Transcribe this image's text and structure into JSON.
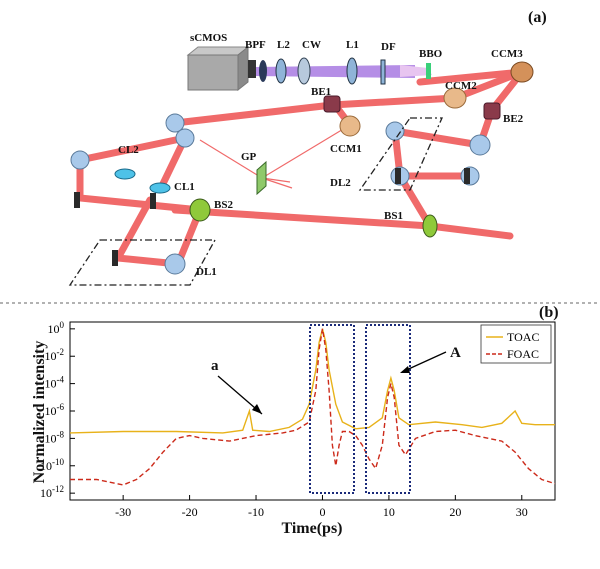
{
  "panel_a": {
    "tag": "(a)",
    "labels": {
      "scmos": "sCMOS",
      "bpf": "BPF",
      "l2": "L2",
      "cw": "CW",
      "l1": "L1",
      "df": "DF",
      "bbo": "BBO",
      "ccm3": "CCM3",
      "ccm2": "CCM2",
      "be1": "BE1",
      "be2": "BE2",
      "ccm1": "CCM1",
      "gp": "GP",
      "cl2": "CL2",
      "cl1": "CL1",
      "dl2": "DL2",
      "bs2": "BS2",
      "bs1": "BS1",
      "dl1": "DL1"
    },
    "colors": {
      "beam": "#f06a6a",
      "blue_beam": "#b58ee6",
      "mirror": "#a9c9ea",
      "splitter": "#8fc93a",
      "ccm": "#e8b98a",
      "cl": "#4ec2e8"
    }
  },
  "panel_b": {
    "tag": "(b)",
    "annotations": {
      "a": "a",
      "A": "A"
    },
    "chart_data": {
      "type": "line",
      "xlabel": "Time(ps)",
      "ylabel": "Normalized intensity",
      "xlim": [
        -38,
        35
      ],
      "ylim_log10": [
        -12.5,
        0.5
      ],
      "x_ticks": [
        "-30",
        "-20",
        "-10",
        "0",
        "10",
        "20",
        "30"
      ],
      "x_tick_values": [
        -30,
        -20,
        -10,
        0,
        10,
        20,
        30
      ],
      "y_ticks": [
        {
          "base": "10",
          "exp": "0",
          "log": 0
        },
        {
          "base": "10",
          "exp": "-2",
          "log": -2
        },
        {
          "base": "10",
          "exp": "-4",
          "log": -4
        },
        {
          "base": "10",
          "exp": "-6",
          "log": -6
        },
        {
          "base": "10",
          "exp": "-8",
          "log": -8
        },
        {
          "base": "10",
          "exp": "-10",
          "log": -10
        },
        {
          "base": "10",
          "exp": "-12",
          "log": -12
        }
      ],
      "legend_position": "top-right",
      "series": [
        {
          "name": "TOAC",
          "color": "#e8b21a",
          "dash": "solid",
          "log10_points": [
            [
              -38,
              -7.6
            ],
            [
              -30,
              -7.5
            ],
            [
              -22,
              -7.5
            ],
            [
              -15,
              -7.6
            ],
            [
              -12,
              -7.4
            ],
            [
              -11,
              -6.0
            ],
            [
              -10.5,
              -7.4
            ],
            [
              -8,
              -7.5
            ],
            [
              -5,
              -7.2
            ],
            [
              -3,
              -6.6
            ],
            [
              -2,
              -5.5
            ],
            [
              -1,
              -3
            ],
            [
              -0.5,
              -1
            ],
            [
              0,
              0
            ],
            [
              0.5,
              -1
            ],
            [
              1,
              -3
            ],
            [
              2,
              -5.5
            ],
            [
              3,
              -6.8
            ],
            [
              5,
              -7.3
            ],
            [
              7,
              -7.2
            ],
            [
              9,
              -6.5
            ],
            [
              9.8,
              -4.5
            ],
            [
              10.3,
              -3.6
            ],
            [
              10.8,
              -4.5
            ],
            [
              11.5,
              -6.5
            ],
            [
              13,
              -7.0
            ],
            [
              17,
              -6.8
            ],
            [
              21,
              -7.0
            ],
            [
              24,
              -7.2
            ],
            [
              27,
              -6.9
            ],
            [
              29,
              -6.0
            ],
            [
              30,
              -6.9
            ],
            [
              32,
              -7.0
            ],
            [
              35,
              -7.0
            ]
          ]
        },
        {
          "name": "FOAC",
          "color": "#cc2a1a",
          "dash": "dashed",
          "log10_points": [
            [
              -38,
              -11
            ],
            [
              -34,
              -11
            ],
            [
              -30,
              -11.4
            ],
            [
              -28,
              -11.0
            ],
            [
              -26,
              -10.2
            ],
            [
              -24,
              -9
            ],
            [
              -22,
              -8.0
            ],
            [
              -20,
              -7.8
            ],
            [
              -18,
              -8.0
            ],
            [
              -14,
              -8.2
            ],
            [
              -10,
              -7.8
            ],
            [
              -6,
              -7.6
            ],
            [
              -4,
              -7.4
            ],
            [
              -2,
              -6.8
            ],
            [
              -1,
              -4.5
            ],
            [
              -0.5,
              -1.5
            ],
            [
              0,
              0
            ],
            [
              0.5,
              -1.5
            ],
            [
              1,
              -4.5
            ],
            [
              1.5,
              -8.5
            ],
            [
              2,
              -10
            ],
            [
              2.5,
              -8.5
            ],
            [
              3,
              -7.5
            ],
            [
              4,
              -7.5
            ],
            [
              5,
              -7.8
            ],
            [
              6,
              -8.5
            ],
            [
              7,
              -9.5
            ],
            [
              8,
              -10.2
            ],
            [
              9,
              -8.5
            ],
            [
              9.8,
              -5
            ],
            [
              10.3,
              -4.0
            ],
            [
              10.8,
              -5
            ],
            [
              11.5,
              -8.5
            ],
            [
              12.5,
              -9.2
            ],
            [
              14,
              -8.0
            ],
            [
              17,
              -7.5
            ],
            [
              20,
              -7.4
            ],
            [
              23,
              -7.8
            ],
            [
              25,
              -8.0
            ],
            [
              27,
              -8.2
            ],
            [
              29,
              -9.0
            ],
            [
              31,
              -10.2
            ],
            [
              33,
              -11.0
            ],
            [
              35,
              -11.3
            ]
          ]
        }
      ]
    }
  }
}
